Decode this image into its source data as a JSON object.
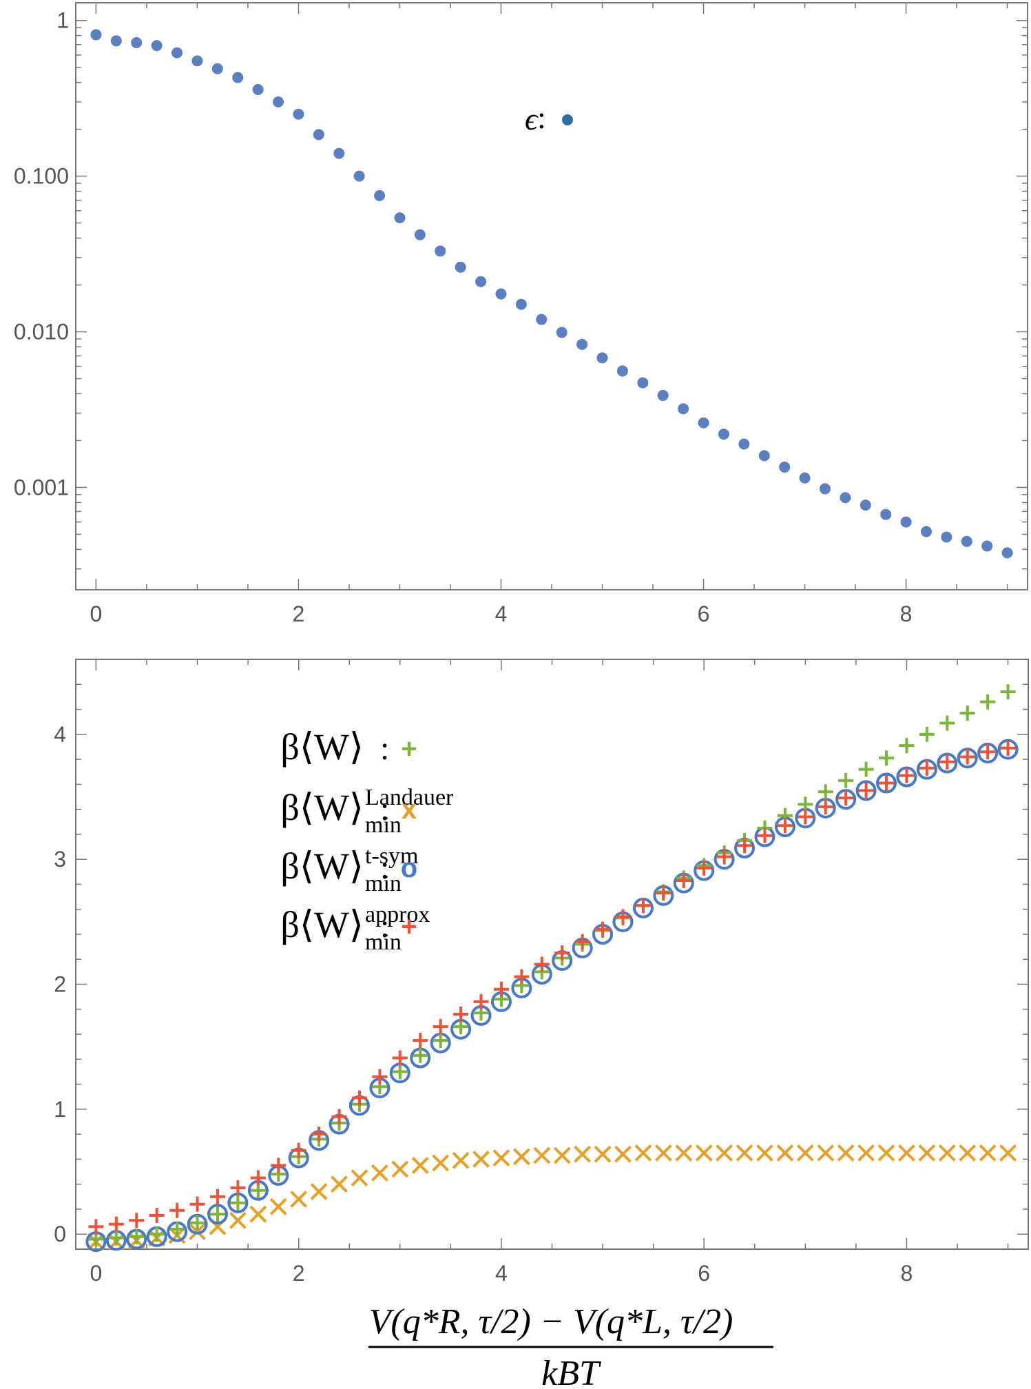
{
  "chart_data": [
    {
      "type": "scatter",
      "yscale": "log",
      "xlim": [
        -0.2,
        9.2
      ],
      "ylim": [
        0.00022,
        1.3
      ],
      "xticks": [
        0,
        2,
        4,
        6,
        8
      ],
      "xtick_labels": [
        "0",
        "2",
        "4",
        "6",
        "8"
      ],
      "yticks": [
        1,
        0.1,
        0.01,
        0.001
      ],
      "ytick_labels": [
        "1",
        "0.100",
        "0.010",
        "0.001"
      ],
      "grid": false,
      "legend": {
        "position": "upper-center",
        "symbol": "ϵ",
        "separator": ":"
      },
      "series": [
        {
          "name": "epsilon",
          "label": "ϵ",
          "marker": "dot",
          "color": "#5b7fbf",
          "x": [
            0,
            0.2,
            0.4,
            0.6,
            0.8,
            1.0,
            1.2,
            1.4,
            1.6,
            1.8,
            2.0,
            2.2,
            2.4,
            2.6,
            2.8,
            3.0,
            3.2,
            3.4,
            3.6,
            3.8,
            4.0,
            4.2,
            4.4,
            4.6,
            4.8,
            5.0,
            5.2,
            5.4,
            5.6,
            5.8,
            6.0,
            6.2,
            6.4,
            6.6,
            6.8,
            7.0,
            7.2,
            7.4,
            7.6,
            7.8,
            8.0,
            8.2,
            8.4,
            8.6,
            8.8,
            9.0
          ],
          "y": [
            0.81,
            0.74,
            0.72,
            0.69,
            0.62,
            0.55,
            0.49,
            0.43,
            0.36,
            0.3,
            0.25,
            0.185,
            0.14,
            0.1,
            0.075,
            0.054,
            0.042,
            0.033,
            0.026,
            0.021,
            0.0175,
            0.015,
            0.012,
            0.0099,
            0.0083,
            0.0068,
            0.0056,
            0.0047,
            0.0039,
            0.0032,
            0.0026,
            0.0022,
            0.0019,
            0.0016,
            0.00135,
            0.00115,
            0.00098,
            0.00086,
            0.00077,
            0.00067,
            0.0006,
            0.00052,
            0.00048,
            0.00045,
            0.00042,
            0.00038
          ]
        }
      ]
    },
    {
      "type": "scatter",
      "xlim": [
        -0.2,
        9.2
      ],
      "ylim": [
        -0.12,
        4.6
      ],
      "xticks": [
        0,
        2,
        4,
        6,
        8
      ],
      "xtick_labels": [
        "0",
        "2",
        "4",
        "6",
        "8"
      ],
      "yticks": [
        0,
        1,
        2,
        3,
        4
      ],
      "ytick_labels": [
        "0",
        "1",
        "2",
        "3",
        "4"
      ],
      "xlabel": {
        "numerator": "V(q*R, τ/2) − V(q*L, τ/2)",
        "denominator": "kBT"
      },
      "grid": false,
      "legend": {
        "position": "upper-left"
      },
      "x": [
        0,
        0.2,
        0.4,
        0.6,
        0.8,
        1.0,
        1.2,
        1.4,
        1.6,
        1.8,
        2.0,
        2.2,
        2.4,
        2.6,
        2.8,
        3.0,
        3.2,
        3.4,
        3.6,
        3.8,
        4.0,
        4.2,
        4.4,
        4.6,
        4.8,
        5.0,
        5.2,
        5.4,
        5.6,
        5.8,
        6.0,
        6.2,
        6.4,
        6.6,
        6.8,
        7.0,
        7.2,
        7.4,
        7.6,
        7.8,
        8.0,
        8.2,
        8.4,
        8.6,
        8.8,
        9.0
      ],
      "series": [
        {
          "name": "work",
          "legend_main": "β⟨W⟩",
          "legend_sup": "",
          "legend_sub": "",
          "marker": "plus",
          "marker_char": "+",
          "color": "#7cb43c",
          "values": [
            -0.04,
            -0.03,
            -0.02,
            0.0,
            0.04,
            0.09,
            0.16,
            0.25,
            0.35,
            0.48,
            0.62,
            0.76,
            0.89,
            1.04,
            1.18,
            1.3,
            1.43,
            1.55,
            1.66,
            1.77,
            1.88,
            1.99,
            2.1,
            2.21,
            2.32,
            2.43,
            2.53,
            2.63,
            2.74,
            2.85,
            2.95,
            3.05,
            3.15,
            3.25,
            3.35,
            3.44,
            3.54,
            3.63,
            3.72,
            3.81,
            3.91,
            4.0,
            4.09,
            4.17,
            4.26,
            4.34
          ]
        },
        {
          "name": "landauer",
          "legend_main": "β⟨W⟩",
          "legend_sup": "Landauer",
          "legend_sub": "min",
          "marker": "x",
          "marker_char": "x",
          "color": "#e3a02a",
          "values": [
            -0.06,
            -0.06,
            -0.05,
            -0.03,
            -0.01,
            0.02,
            0.06,
            0.11,
            0.16,
            0.22,
            0.28,
            0.34,
            0.4,
            0.45,
            0.49,
            0.52,
            0.55,
            0.57,
            0.59,
            0.6,
            0.61,
            0.62,
            0.63,
            0.63,
            0.64,
            0.64,
            0.64,
            0.65,
            0.65,
            0.65,
            0.65,
            0.65,
            0.65,
            0.65,
            0.65,
            0.65,
            0.65,
            0.65,
            0.65,
            0.65,
            0.65,
            0.65,
            0.65,
            0.65,
            0.65,
            0.65
          ]
        },
        {
          "name": "tsym",
          "legend_main": "β⟨W⟩",
          "legend_sup": "t-sym",
          "legend_sub": "min",
          "marker": "circle",
          "marker_char": "o",
          "color": "#4a78c2",
          "values": [
            -0.06,
            -0.05,
            -0.04,
            -0.02,
            0.02,
            0.08,
            0.16,
            0.25,
            0.35,
            0.47,
            0.61,
            0.75,
            0.88,
            1.03,
            1.17,
            1.29,
            1.41,
            1.53,
            1.64,
            1.75,
            1.86,
            1.97,
            2.08,
            2.19,
            2.29,
            2.4,
            2.5,
            2.61,
            2.71,
            2.81,
            2.91,
            3.0,
            3.09,
            3.18,
            3.26,
            3.33,
            3.41,
            3.48,
            3.55,
            3.61,
            3.66,
            3.72,
            3.77,
            3.81,
            3.85,
            3.88
          ]
        },
        {
          "name": "approx",
          "legend_main": "β⟨W⟩",
          "legend_sup": "approx",
          "legend_sub": "min",
          "marker": "plus",
          "marker_char": "+",
          "color": "#e8543c",
          "values": [
            0.06,
            0.08,
            0.11,
            0.15,
            0.19,
            0.24,
            0.3,
            0.37,
            0.45,
            0.55,
            0.67,
            0.8,
            0.94,
            1.09,
            1.26,
            1.41,
            1.55,
            1.66,
            1.76,
            1.86,
            1.96,
            2.06,
            2.16,
            2.25,
            2.34,
            2.44,
            2.54,
            2.63,
            2.73,
            2.83,
            2.93,
            3.02,
            3.11,
            3.19,
            3.27,
            3.34,
            3.42,
            3.49,
            3.55,
            3.61,
            3.67,
            3.73,
            3.78,
            3.82,
            3.86,
            3.89
          ]
        }
      ]
    }
  ]
}
